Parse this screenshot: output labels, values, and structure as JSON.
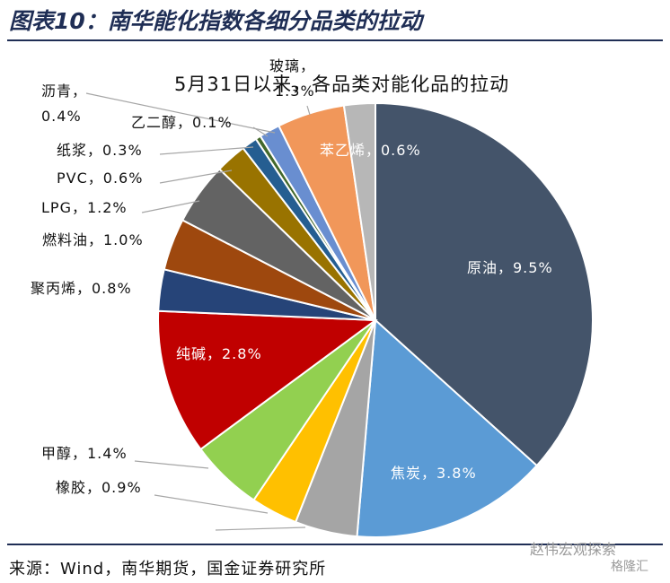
{
  "header": {
    "title": "图表10：南华能化指数各细分品类的拉动"
  },
  "footer": {
    "source": "来源：Wind，南华期货，国金证券研究所"
  },
  "watermark": {
    "line1": "赵伟宏观探索",
    "line2": "格隆汇"
  },
  "chart_data": {
    "type": "pie",
    "title": "5月31日以来，各品类对能化品的拉动",
    "slices": [
      {
        "name": "原油",
        "label": "原油，9.5%",
        "value": 9.5,
        "color": "#44546a",
        "label_inside": true
      },
      {
        "name": "焦炭",
        "label": "焦炭，3.8%",
        "value": 3.8,
        "color": "#5b9bd5",
        "label_inside": true
      },
      {
        "name": "",
        "label": "",
        "value": 1.2,
        "color": "#a5a5a5",
        "label_inside": false
      },
      {
        "name": "",
        "label": "",
        "value": 0.9,
        "color": "#ffc000",
        "label_inside": false
      },
      {
        "name": "甲醇",
        "label": "甲醇，1.4%",
        "value": 1.4,
        "color": "#92d050",
        "label_inside": false
      },
      {
        "name": "纯碱",
        "label": "纯碱，2.8%",
        "value": 2.8,
        "color": "#c00000",
        "label_inside": true
      },
      {
        "name": "聚丙烯",
        "label": "聚丙烯，0.8%",
        "value": 0.8,
        "color": "#264478",
        "label_inside": false
      },
      {
        "name": "燃料油",
        "label": "燃料油，1.0%",
        "value": 1.0,
        "color": "#9e480e",
        "label_inside": false
      },
      {
        "name": "LPG",
        "label": "LPG，1.2%",
        "value": 1.2,
        "color": "#636363",
        "label_inside": false
      },
      {
        "name": "PVC",
        "label": "PVC，0.6%",
        "value": 0.6,
        "color": "#997300",
        "label_inside": false
      },
      {
        "name": "纸浆",
        "label": "纸浆，0.3%",
        "value": 0.3,
        "color": "#255e91",
        "label_inside": false
      },
      {
        "name": "乙二醇",
        "label": "乙二醇，0.1%",
        "value": 0.1,
        "color": "#43682b",
        "label_inside": false
      },
      {
        "name": "沥青",
        "label": "沥青，0.4%",
        "value": 0.4,
        "color": "#698ed0",
        "label_inside": false
      },
      {
        "name": "玻璃",
        "label": "玻璃，1.3%",
        "value": 1.3,
        "color": "#f1975a",
        "label_inside": false
      },
      {
        "name": "苯乙烯",
        "label": "苯乙烯，0.6%",
        "value": 0.6,
        "color": "#b7b7b7",
        "label_inside": true
      }
    ],
    "label_lines": {
      "甲醇": [
        "甲醇，1.4%"
      ],
      "橡胶": [
        "橡胶，0.9%"
      ],
      "聚丙烯": [
        "聚丙烯，0.8%"
      ],
      "燃料油": [
        "燃料油，1.0%"
      ],
      "LPG": [
        "LPG，1.2%"
      ],
      "PVC": [
        "PVC，0.6%"
      ],
      "纸浆": [
        "纸浆，0.3%"
      ],
      "乙二醇": [
        "乙二醇，0.1%"
      ],
      "沥青": [
        "沥青，",
        "0.4%"
      ],
      "玻璃": [
        "玻璃，",
        "1.3%"
      ]
    },
    "extra_labels": [
      {
        "label": "橡胶，0.9%"
      }
    ]
  }
}
